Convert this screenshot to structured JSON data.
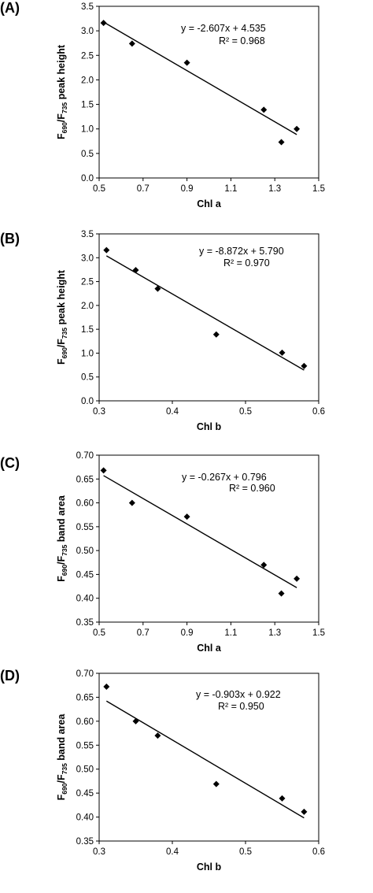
{
  "chart_data": [
    {
      "type": "scatter",
      "panel_label": "(A)",
      "xlabel": "Chl a",
      "ylabel": {
        "lead": "F",
        "sub1": "690",
        "mid": "/F",
        "sub2": "735",
        "tail": " peak height"
      },
      "xlim": [
        0.5,
        1.5
      ],
      "ylim": [
        0.0,
        3.5
      ],
      "xticks": [
        "0.5",
        "0.7",
        "0.9",
        "1.1",
        "1.3",
        "1.5"
      ],
      "yticks": [
        "0.0",
        "0.5",
        "1.0",
        "1.5",
        "2.0",
        "2.5",
        "3.0",
        "3.5"
      ],
      "points": [
        {
          "x": 0.52,
          "y": 3.16
        },
        {
          "x": 0.65,
          "y": 2.74
        },
        {
          "x": 0.9,
          "y": 2.35
        },
        {
          "x": 1.25,
          "y": 1.39
        },
        {
          "x": 1.33,
          "y": 0.73
        },
        {
          "x": 1.4,
          "y": 1.0
        }
      ],
      "trendline": {
        "slope": -2.607,
        "intercept": 4.535,
        "x_from": 0.52,
        "x_to": 1.4
      },
      "equation": "y = -2.607x + 4.535",
      "r_squared": "R² = 0.968",
      "grid": false,
      "marker": "diamond"
    },
    {
      "type": "scatter",
      "panel_label": "(B)",
      "xlabel": "Chl b",
      "ylabel": {
        "lead": "F",
        "sub1": "690",
        "mid": "/F",
        "sub2": "735",
        "tail": " peak height"
      },
      "xlim": [
        0.3,
        0.6
      ],
      "ylim": [
        0.0,
        3.5
      ],
      "xticks": [
        "0.3",
        "0.4",
        "0.5",
        "0.6"
      ],
      "yticks": [
        "0.0",
        "0.5",
        "1.0",
        "1.5",
        "2.0",
        "2.5",
        "3.0",
        "3.5"
      ],
      "points": [
        {
          "x": 0.31,
          "y": 3.16
        },
        {
          "x": 0.35,
          "y": 2.74
        },
        {
          "x": 0.38,
          "y": 2.35
        },
        {
          "x": 0.46,
          "y": 1.39
        },
        {
          "x": 0.55,
          "y": 1.01
        },
        {
          "x": 0.58,
          "y": 0.73
        }
      ],
      "trendline": {
        "slope": -8.872,
        "intercept": 5.79,
        "x_from": 0.31,
        "x_to": 0.58
      },
      "equation": "y = -8.872x + 5.790",
      "r_squared": "R² = 0.970",
      "grid": false,
      "marker": "diamond"
    },
    {
      "type": "scatter",
      "panel_label": "(C)",
      "xlabel": "Chl a",
      "ylabel": {
        "lead": "F",
        "sub1": "690",
        "mid": "/F",
        "sub2": "735",
        "tail": " band area"
      },
      "xlim": [
        0.5,
        1.5
      ],
      "ylim": [
        0.35,
        0.7
      ],
      "xticks": [
        "0.5",
        "0.7",
        "0.9",
        "1.1",
        "1.3",
        "1.5"
      ],
      "yticks": [
        "0.35",
        "0.40",
        "0.45",
        "0.50",
        "0.55",
        "0.60",
        "0.65",
        "0.70"
      ],
      "points": [
        {
          "x": 0.52,
          "y": 0.668
        },
        {
          "x": 0.65,
          "y": 0.6
        },
        {
          "x": 0.9,
          "y": 0.571
        },
        {
          "x": 1.25,
          "y": 0.47
        },
        {
          "x": 1.33,
          "y": 0.41
        },
        {
          "x": 1.4,
          "y": 0.441
        }
      ],
      "trendline": {
        "slope": -0.267,
        "intercept": 0.796,
        "x_from": 0.52,
        "x_to": 1.4
      },
      "equation": "y = -0.267x + 0.796",
      "r_squared": "R² = 0.960",
      "grid": false,
      "marker": "diamond"
    },
    {
      "type": "scatter",
      "panel_label": "(D)",
      "xlabel": "Chl b",
      "ylabel": {
        "lead": "F",
        "sub1": "690",
        "mid": "/F",
        "sub2": "735",
        "tail": " band area"
      },
      "xlim": [
        0.3,
        0.6
      ],
      "ylim": [
        0.35,
        0.7
      ],
      "xticks": [
        "0.3",
        "0.4",
        "0.5",
        "0.6"
      ],
      "yticks": [
        "0.35",
        "0.40",
        "0.45",
        "0.50",
        "0.55",
        "0.60",
        "0.65",
        "0.70"
      ],
      "points": [
        {
          "x": 0.31,
          "y": 0.672
        },
        {
          "x": 0.35,
          "y": 0.6
        },
        {
          "x": 0.38,
          "y": 0.57
        },
        {
          "x": 0.46,
          "y": 0.469
        },
        {
          "x": 0.55,
          "y": 0.439
        },
        {
          "x": 0.58,
          "y": 0.411
        }
      ],
      "trendline": {
        "slope": -0.903,
        "intercept": 0.922,
        "x_from": 0.31,
        "x_to": 0.58
      },
      "equation": "y = -0.903x + 0.922",
      "r_squared": "R² = 0.950",
      "grid": false,
      "marker": "diamond"
    }
  ]
}
